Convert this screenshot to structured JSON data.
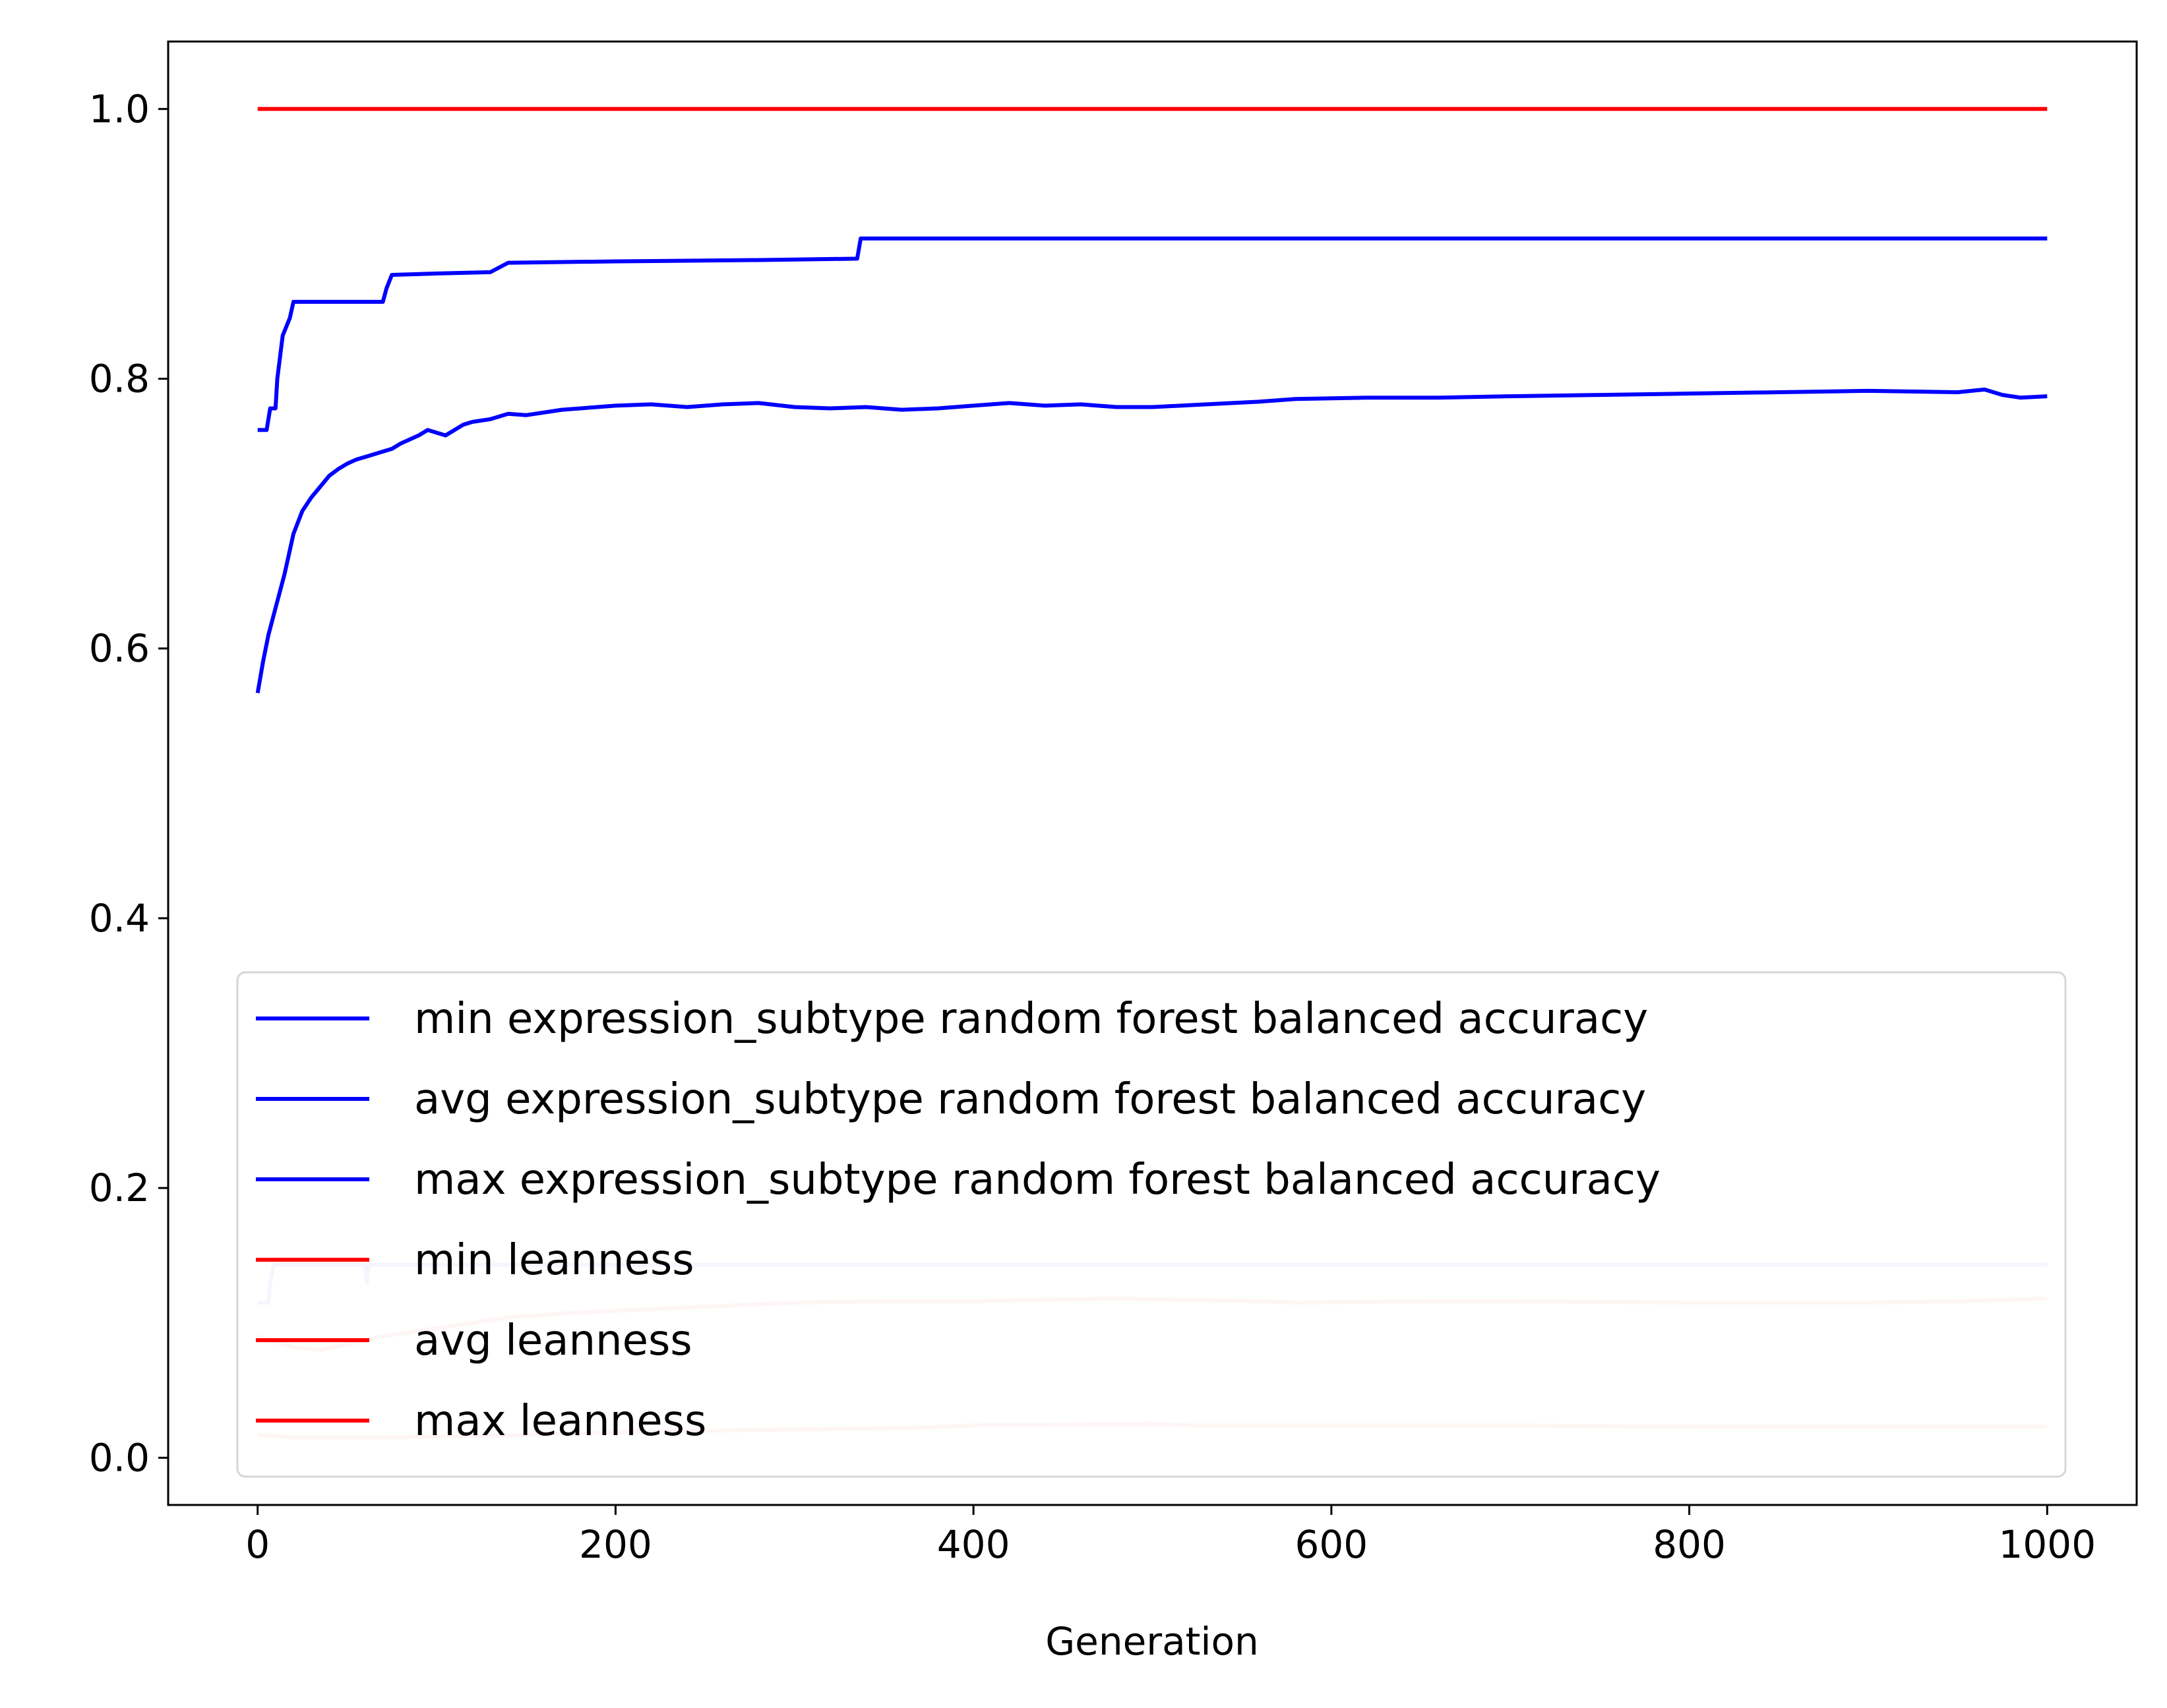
{
  "chart_data": {
    "type": "line",
    "title": "",
    "xlabel": "Generation",
    "ylabel": "",
    "xlim": [
      -50,
      1050
    ],
    "ylim": [
      -0.035,
      1.05
    ],
    "xticks": [
      0,
      200,
      400,
      600,
      800,
      1000
    ],
    "xtick_labels": [
      "0",
      "200",
      "400",
      "600",
      "800",
      "1000"
    ],
    "yticks": [
      0.0,
      0.2,
      0.4,
      0.6,
      0.8,
      1.0
    ],
    "ytick_labels": [
      "0.0",
      "0.2",
      "0.4",
      "0.6",
      "0.8",
      "1.0"
    ],
    "grid": false,
    "legend_position": "lower-center",
    "series": [
      {
        "name": "min expression_subtype random forest balanced accuracy",
        "color": "#ccccff",
        "points": [
          [
            0,
            0.115
          ],
          [
            6,
            0.115
          ],
          [
            7,
            0.13
          ],
          [
            9,
            0.143
          ],
          [
            60,
            0.143
          ],
          [
            61,
            0.13
          ],
          [
            62,
            0.143
          ],
          [
            1000,
            0.143
          ]
        ]
      },
      {
        "name": "avg expression_subtype random forest balanced accuracy",
        "color": "#0000ff",
        "points": [
          [
            0,
            0.567
          ],
          [
            3,
            0.59
          ],
          [
            6,
            0.61
          ],
          [
            10,
            0.63
          ],
          [
            15,
            0.655
          ],
          [
            20,
            0.685
          ],
          [
            25,
            0.702
          ],
          [
            30,
            0.712
          ],
          [
            35,
            0.72
          ],
          [
            40,
            0.728
          ],
          [
            45,
            0.733
          ],
          [
            50,
            0.737
          ],
          [
            55,
            0.74
          ],
          [
            60,
            0.742
          ],
          [
            65,
            0.744
          ],
          [
            70,
            0.746
          ],
          [
            75,
            0.748
          ],
          [
            80,
            0.752
          ],
          [
            85,
            0.755
          ],
          [
            90,
            0.758
          ],
          [
            95,
            0.762
          ],
          [
            100,
            0.76
          ],
          [
            105,
            0.758
          ],
          [
            110,
            0.762
          ],
          [
            115,
            0.766
          ],
          [
            120,
            0.768
          ],
          [
            130,
            0.77
          ],
          [
            140,
            0.774
          ],
          [
            150,
            0.773
          ],
          [
            170,
            0.777
          ],
          [
            200,
            0.78
          ],
          [
            220,
            0.781
          ],
          [
            240,
            0.779
          ],
          [
            260,
            0.781
          ],
          [
            280,
            0.782
          ],
          [
            300,
            0.779
          ],
          [
            320,
            0.778
          ],
          [
            340,
            0.779
          ],
          [
            360,
            0.777
          ],
          [
            380,
            0.778
          ],
          [
            400,
            0.78
          ],
          [
            420,
            0.782
          ],
          [
            440,
            0.78
          ],
          [
            460,
            0.781
          ],
          [
            480,
            0.779
          ],
          [
            500,
            0.779
          ],
          [
            530,
            0.781
          ],
          [
            560,
            0.783
          ],
          [
            580,
            0.785
          ],
          [
            620,
            0.786
          ],
          [
            660,
            0.786
          ],
          [
            700,
            0.787
          ],
          [
            750,
            0.788
          ],
          [
            800,
            0.789
          ],
          [
            850,
            0.79
          ],
          [
            900,
            0.791
          ],
          [
            950,
            0.79
          ],
          [
            965,
            0.792
          ],
          [
            975,
            0.788
          ],
          [
            985,
            0.786
          ],
          [
            1000,
            0.787
          ]
        ]
      },
      {
        "name": "max expression_subtype random forest balanced accuracy",
        "color": "#0000ff",
        "points": [
          [
            0,
            0.762
          ],
          [
            5,
            0.762
          ],
          [
            7,
            0.778
          ],
          [
            10,
            0.778
          ],
          [
            11,
            0.8
          ],
          [
            14,
            0.832
          ],
          [
            18,
            0.845
          ],
          [
            20,
            0.857
          ],
          [
            70,
            0.857
          ],
          [
            72,
            0.867
          ],
          [
            75,
            0.877
          ],
          [
            100,
            0.878
          ],
          [
            130,
            0.879
          ],
          [
            140,
            0.886
          ],
          [
            200,
            0.887
          ],
          [
            280,
            0.888
          ],
          [
            335,
            0.889
          ],
          [
            337,
            0.904
          ],
          [
            1000,
            0.904
          ]
        ]
      },
      {
        "name": "min leanness",
        "color": "#ffcccc",
        "points": [
          [
            0,
            0.017
          ],
          [
            20,
            0.015
          ],
          [
            60,
            0.015
          ],
          [
            120,
            0.016
          ],
          [
            200,
            0.019
          ],
          [
            300,
            0.021
          ],
          [
            360,
            0.022
          ],
          [
            400,
            0.024
          ],
          [
            500,
            0.025
          ],
          [
            520,
            0.024
          ],
          [
            700,
            0.024
          ],
          [
            800,
            0.023
          ],
          [
            900,
            0.023
          ],
          [
            1000,
            0.023
          ]
        ]
      },
      {
        "name": "avg leanness",
        "color": "#ffcccc",
        "points": [
          [
            0,
            0.09
          ],
          [
            10,
            0.086
          ],
          [
            20,
            0.082
          ],
          [
            35,
            0.08
          ],
          [
            50,
            0.084
          ],
          [
            70,
            0.09
          ],
          [
            90,
            0.094
          ],
          [
            110,
            0.098
          ],
          [
            140,
            0.104
          ],
          [
            170,
            0.107
          ],
          [
            200,
            0.109
          ],
          [
            250,
            0.112
          ],
          [
            300,
            0.115
          ],
          [
            350,
            0.116
          ],
          [
            400,
            0.116
          ],
          [
            430,
            0.117
          ],
          [
            480,
            0.118
          ],
          [
            520,
            0.117
          ],
          [
            560,
            0.116
          ],
          [
            580,
            0.115
          ],
          [
            650,
            0.116
          ],
          [
            700,
            0.116
          ],
          [
            800,
            0.115
          ],
          [
            900,
            0.115
          ],
          [
            950,
            0.116
          ],
          [
            1000,
            0.118
          ]
        ]
      },
      {
        "name": "max leanness",
        "color": "#ff0000",
        "points": [
          [
            0,
            1.0
          ],
          [
            1000,
            1.0
          ]
        ]
      }
    ]
  }
}
